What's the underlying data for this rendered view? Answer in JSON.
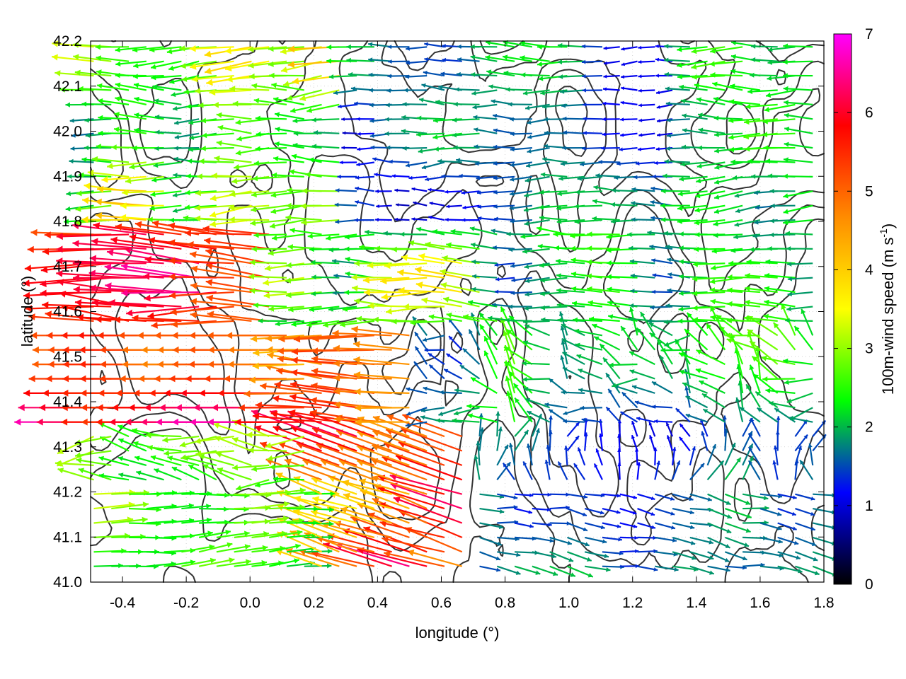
{
  "chart_data": {
    "type": "vector-field",
    "xlabel": "longitude (°)",
    "ylabel": "latitude (°)",
    "xlim": [
      -0.5,
      1.8
    ],
    "ylim": [
      41.0,
      42.2
    ],
    "x_ticks": [
      "-0.4",
      "-0.2",
      "0.0",
      "0.2",
      "0.4",
      "0.6",
      "0.8",
      "1.0",
      "1.2",
      "1.4",
      "1.6",
      "1.8"
    ],
    "y_ticks": [
      "41.0",
      "41.1",
      "41.2",
      "41.3",
      "41.4",
      "41.5",
      "41.6",
      "41.7",
      "41.8",
      "41.9",
      "42.0",
      "42.1",
      "42.2"
    ],
    "grid": true,
    "colorbar": {
      "label_main": "100m-wind speed (m s",
      "label_sup": "-1",
      "label_end": ")",
      "range": [
        0,
        7
      ],
      "ticks": [
        "0",
        "1",
        "2",
        "3",
        "4",
        "5",
        "6",
        "7"
      ],
      "colors": [
        "#000000",
        "#0000ff",
        "#00ff00",
        "#ffff00",
        "#ff8c00",
        "#ff0000",
        "#ff00ff"
      ]
    },
    "contour_color": "#333333"
  }
}
